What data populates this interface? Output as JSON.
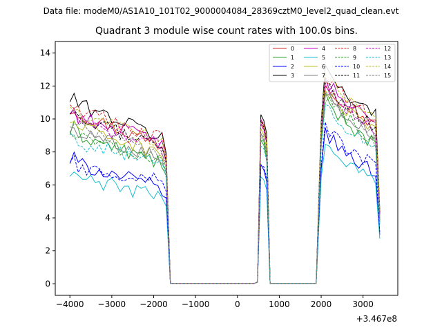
{
  "chart_data": {
    "type": "line",
    "suptitle": "Data file: modeM0/AS1A10_101T02_9000004084_28369cztM0_level2_quad_clean.evt",
    "title": "Quadrant 3 module wise count rates with 100.0s bins.",
    "xlabel": "",
    "ylabel": "",
    "x_offset_label": "+3.467e8",
    "xlim": [
      -4350,
      3830
    ],
    "ylim": [
      -0.7,
      14.7
    ],
    "x_ticks": [
      -4000,
      -3000,
      -2000,
      -1000,
      0,
      1000,
      2000,
      3000
    ],
    "x_tick_labels": [
      "−4000",
      "−3000",
      "−2000",
      "−1000",
      "0",
      "1000",
      "2000",
      "3000"
    ],
    "y_ticks": [
      0,
      2,
      4,
      6,
      8,
      10,
      12,
      14
    ],
    "y_tick_labels": [
      "0",
      "2",
      "4",
      "6",
      "8",
      "10",
      "12",
      "14"
    ],
    "legend_position": "top-right",
    "segments": [
      {
        "x_start": -4000,
        "x_end": -1800,
        "step": 100
      },
      {
        "x_start": -1700,
        "x_end": -1700,
        "step": 100
      },
      {
        "x_start": -1600,
        "x_end": 400,
        "step": 100
      },
      {
        "x_start": 480,
        "x_end": 480,
        "step": 100
      },
      {
        "x_start": 560,
        "x_end": 700,
        "step": 70
      },
      {
        "x_start": 780,
        "x_end": 1900,
        "step": 100
      },
      {
        "x_start": 2000,
        "x_end": 3400,
        "step": 100
      }
    ],
    "series": [
      {
        "name": "0",
        "color": "#d62728",
        "dash": false,
        "levels": {
          "seg1": [
            10.5,
            8.4,
            0.0,
            0.0,
            9.8,
            0.0,
            12.9,
            9.4
          ],
          "seg2": 7.4,
          "seg4": 0.1,
          "seg5": [
            9.4,
            8.6
          ]
        }
      },
      {
        "name": "1",
        "color": "#2ca02c",
        "dash": false,
        "levels": {
          "seg1": [
            9.2,
            7.3,
            0.0,
            0.0,
            8.7,
            0.0,
            11.7,
            8.3
          ],
          "seg2": 6.6,
          "seg4": 0.1,
          "seg5": [
            8.4,
            7.6
          ]
        }
      },
      {
        "name": "2",
        "color": "#0000ff",
        "dash": false,
        "levels": {
          "seg1": [
            7.4,
            5.8,
            0.0,
            0.0,
            7.1,
            0.0,
            9.6,
            6.6
          ],
          "seg2": 5.2,
          "seg4": 0.1,
          "seg5": [
            6.9,
            6.2
          ]
        }
      },
      {
        "name": "3",
        "color": "#000000",
        "dash": false,
        "levels": {
          "seg1": [
            11.1,
            8.9,
            0.0,
            0.0,
            10.3,
            0.0,
            13.6,
            10.0
          ],
          "seg2": 7.9,
          "seg4": 0.1,
          "seg5": [
            9.9,
            9.1
          ]
        }
      },
      {
        "name": "4",
        "color": "#c000c0",
        "dash": false,
        "levels": {
          "seg1": [
            10.3,
            8.6,
            0.0,
            0.0,
            9.9,
            0.0,
            12.9,
            9.5
          ],
          "seg2": 7.6,
          "seg4": 0.1,
          "seg5": [
            9.6,
            8.7
          ]
        }
      },
      {
        "name": "5",
        "color": "#17becf",
        "dash": false,
        "levels": {
          "seg1": [
            6.5,
            5.3,
            0.0,
            0.0,
            6.6,
            0.0,
            8.9,
            6.1
          ],
          "seg2": 4.7,
          "seg4": 0.1,
          "seg5": [
            6.3,
            5.7
          ]
        }
      },
      {
        "name": "6",
        "color": "#bcbd22",
        "dash": false,
        "levels": {
          "seg1": [
            9.7,
            7.9,
            0.0,
            0.0,
            9.4,
            0.0,
            12.4,
            8.9
          ],
          "seg2": 7.1,
          "seg4": 0.1,
          "seg5": [
            9.0,
            8.2
          ]
        }
      },
      {
        "name": "7",
        "color": "#7f7f7f",
        "dash": false,
        "levels": {
          "seg1": [
            9.4,
            7.7,
            0.0,
            0.0,
            9.0,
            0.0,
            12.2,
            8.7
          ],
          "seg2": 6.9,
          "seg4": 0.1,
          "seg5": [
            8.7,
            7.9
          ]
        }
      },
      {
        "name": "8",
        "color": "#d62728",
        "dash": true,
        "levels": {
          "seg1": [
            10.7,
            8.8,
            0.0,
            0.0,
            10.0,
            0.0,
            13.2,
            9.7
          ],
          "seg2": 7.7,
          "seg4": 0.1,
          "seg5": [
            9.7,
            8.8
          ]
        }
      },
      {
        "name": "9",
        "color": "#2ca02c",
        "dash": true,
        "levels": {
          "seg1": [
            9.0,
            7.5,
            0.0,
            0.0,
            8.8,
            0.0,
            12.0,
            8.5
          ],
          "seg2": 6.7,
          "seg4": 0.1,
          "seg5": [
            8.6,
            7.8
          ]
        }
      },
      {
        "name": "10",
        "color": "#0000ff",
        "dash": true,
        "levels": {
          "seg1": [
            7.1,
            6.3,
            0.0,
            0.0,
            7.3,
            0.0,
            9.9,
            7.0
          ],
          "seg2": 5.6,
          "seg4": 0.1,
          "seg5": [
            7.1,
            6.4
          ]
        }
      },
      {
        "name": "11",
        "color": "#000000",
        "dash": true,
        "levels": {
          "seg1": [
            10.0,
            8.5,
            0.0,
            0.0,
            9.9,
            0.0,
            12.8,
            9.4
          ],
          "seg2": 7.5,
          "seg4": 0.1,
          "seg5": [
            9.5,
            8.7
          ]
        }
      },
      {
        "name": "12",
        "color": "#c000c0",
        "dash": true,
        "levels": {
          "seg1": [
            10.0,
            8.3,
            0.0,
            0.0,
            9.6,
            0.0,
            12.6,
            9.2
          ],
          "seg2": 7.3,
          "seg4": 0.1,
          "seg5": [
            9.3,
            8.5
          ]
        }
      },
      {
        "name": "13",
        "color": "#17becf",
        "dash": true,
        "levels": {
          "seg1": [
            8.7,
            7.2,
            0.0,
            0.0,
            8.4,
            0.0,
            11.4,
            8.0
          ],
          "seg2": 6.4,
          "seg4": 0.1,
          "seg5": [
            8.2,
            7.4
          ]
        }
      },
      {
        "name": "14",
        "color": "#bcbd22",
        "dash": true,
        "levels": {
          "seg1": [
            10.3,
            8.7,
            0.0,
            0.0,
            9.7,
            0.0,
            13.4,
            9.9
          ],
          "seg2": 7.6,
          "seg4": 0.1,
          "seg5": [
            9.6,
            8.8
          ]
        }
      },
      {
        "name": "15",
        "color": "#7f7f7f",
        "dash": true,
        "levels": {
          "seg1": [
            9.6,
            8.0,
            0.0,
            0.0,
            9.2,
            0.0,
            12.3,
            8.8
          ],
          "seg2": 7.0,
          "seg4": 0.1,
          "seg5": [
            8.9,
            8.0
          ]
        }
      }
    ]
  }
}
